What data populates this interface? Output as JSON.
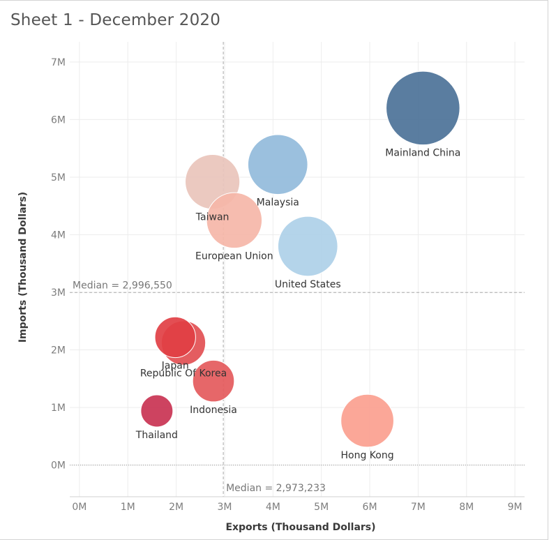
{
  "chart_data": {
    "type": "scatter",
    "title": "Sheet 1 - December 2020",
    "xlabel": "Exports (Thousand Dollars)",
    "ylabel": "Imports (Thousand Dollars)",
    "xlim": [
      -0.2,
      9.2
    ],
    "ylim": [
      -0.55,
      7.35
    ],
    "unit": "M",
    "x_ticks": [
      {
        "v": 0,
        "label": "0M"
      },
      {
        "v": 1,
        "label": "1M"
      },
      {
        "v": 2,
        "label": "2M"
      },
      {
        "v": 3,
        "label": "3M"
      },
      {
        "v": 4,
        "label": "4M"
      },
      {
        "v": 5,
        "label": "5M"
      },
      {
        "v": 6,
        "label": "6M"
      },
      {
        "v": 7,
        "label": "7M"
      },
      {
        "v": 8,
        "label": "8M"
      },
      {
        "v": 9,
        "label": "9M"
      }
    ],
    "y_ticks": [
      {
        "v": 0,
        "label": "0M"
      },
      {
        "v": 1,
        "label": "1M"
      },
      {
        "v": 2,
        "label": "2M"
      },
      {
        "v": 3,
        "label": "3M"
      },
      {
        "v": 4,
        "label": "4M"
      },
      {
        "v": 5,
        "label": "5M"
      },
      {
        "v": 6,
        "label": "6M"
      },
      {
        "v": 7,
        "label": "7M"
      }
    ],
    "grid": true,
    "reference_lines": {
      "x_median": {
        "value": 2.973233,
        "label": "Median = 2,973,233"
      },
      "y_median": {
        "value": 2.99655,
        "label": "Median = 2,996,550"
      }
    },
    "points": [
      {
        "name": "Taiwan",
        "x": 2.75,
        "y": 4.92,
        "size": 3.15,
        "color": "#e9c4bb",
        "label_pos": "below"
      },
      {
        "name": "European Union",
        "x": 3.2,
        "y": 4.25,
        "size": 3.2,
        "color": "#f5b6a8",
        "label_pos": "below"
      },
      {
        "name": "Malaysia",
        "x": 4.1,
        "y": 5.22,
        "size": 3.45,
        "color": "#92bbdb",
        "label_pos": "below"
      },
      {
        "name": "United States",
        "x": 4.72,
        "y": 3.8,
        "size": 3.45,
        "color": "#aed0e8",
        "label_pos": "below"
      },
      {
        "name": "Mainland China",
        "x": 7.1,
        "y": 6.2,
        "size": 4.25,
        "color": "#4c7298",
        "label_pos": "below"
      },
      {
        "name": "Republic Of Korea",
        "x": 2.15,
        "y": 2.12,
        "size": 2.55,
        "color": "#e24f52",
        "label_pos": "below"
      },
      {
        "name": "Japan",
        "x": 1.98,
        "y": 2.22,
        "size": 2.35,
        "color": "#e13f44",
        "label_pos": "below"
      },
      {
        "name": "Indonesia",
        "x": 2.77,
        "y": 1.46,
        "size": 2.4,
        "color": "#e45a5c",
        "label_pos": "below"
      },
      {
        "name": "Thailand",
        "x": 1.6,
        "y": 0.94,
        "size": 1.85,
        "color": "#c93352",
        "label_pos": "below"
      },
      {
        "name": "Hong Kong",
        "x": 5.95,
        "y": 0.77,
        "size": 3.05,
        "color": "#fba08f",
        "label_pos": "below"
      }
    ]
  }
}
